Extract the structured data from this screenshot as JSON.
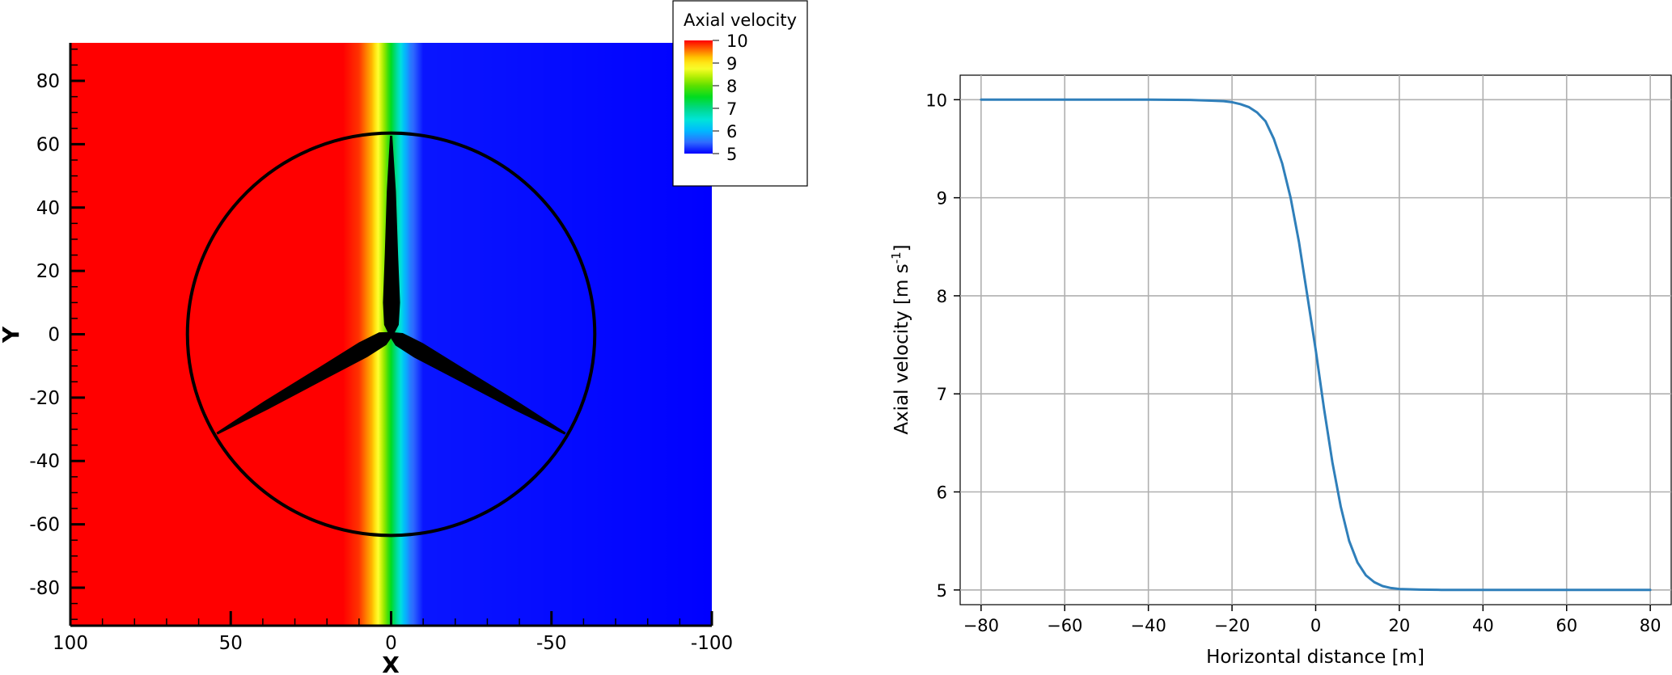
{
  "chart_data": [
    {
      "type": "heatmap",
      "title": "",
      "xlabel": "X",
      "ylabel": "Y",
      "xlim": [
        100,
        -100
      ],
      "ylim": [
        -92,
        92
      ],
      "x_ticks": [
        100,
        50,
        0,
        -50,
        -100
      ],
      "x_tick_labels": [
        "100",
        "50",
        "0",
        "-50",
        "-100"
      ],
      "y_ticks": [
        80,
        60,
        40,
        20,
        0,
        -20,
        -40,
        -60,
        -80
      ],
      "y_tick_labels": [
        "80",
        "60",
        "40",
        "20",
        "0",
        "-20",
        "-40",
        "-60",
        "-80"
      ],
      "field": {
        "description_profile_x": [
          100,
          15,
          10,
          6,
          4,
          2,
          0,
          -2,
          -4,
          -6,
          -10,
          -100
        ],
        "values": [
          10,
          10,
          9.8,
          9.3,
          8.8,
          8.2,
          7.5,
          6.8,
          6.1,
          5.6,
          5.1,
          5
        ]
      },
      "legend": {
        "title": "Axial velocity",
        "levels": [
          "10",
          "9",
          "8",
          "7",
          "6",
          "5"
        ],
        "placement": "top-right",
        "colors": [
          "#ff0000",
          "#ff8c00",
          "#ffff00",
          "#9be600",
          "#00e000",
          "#00d8b0",
          "#00e6ff",
          "#3399ff",
          "#0000ff"
        ]
      },
      "rotor": {
        "center": [
          0,
          0
        ],
        "radius": 63.5,
        "blades": 3
      }
    },
    {
      "type": "line",
      "title": "",
      "xlabel": "Horizontal distance [m]",
      "ylabel_main": "Axial velocity [m s",
      "ylabel_sup": "-1",
      "ylabel_end": "]",
      "xlim": [
        -85,
        85
      ],
      "ylim": [
        4.85,
        10.25
      ],
      "x_ticks": [
        -80,
        -60,
        -40,
        -20,
        0,
        20,
        40,
        60,
        80
      ],
      "x_tick_labels": [
        "−80",
        "−60",
        "−40",
        "−20",
        "0",
        "20",
        "40",
        "60",
        "80"
      ],
      "y_ticks": [
        5,
        6,
        7,
        8,
        9,
        10
      ],
      "y_tick_labels": [
        "5",
        "6",
        "7",
        "8",
        "9",
        "10"
      ],
      "grid": true,
      "series": [
        {
          "color": "#2f7fba",
          "x": [
            -80,
            -60,
            -40,
            -30,
            -25,
            -22,
            -20,
            -18,
            -16,
            -14,
            -12,
            -10,
            -8,
            -6,
            -4,
            -2,
            0,
            2,
            4,
            6,
            8,
            10,
            12,
            14,
            16,
            18,
            20,
            25,
            30,
            40,
            60,
            80
          ],
          "y": [
            10,
            10,
            10,
            9.998,
            9.99,
            9.985,
            9.975,
            9.955,
            9.925,
            9.87,
            9.78,
            9.6,
            9.35,
            9.0,
            8.55,
            8.0,
            7.45,
            6.85,
            6.3,
            5.85,
            5.5,
            5.28,
            5.15,
            5.08,
            5.04,
            5.02,
            5.01,
            5.003,
            5.001,
            5,
            5,
            5
          ]
        }
      ]
    }
  ]
}
